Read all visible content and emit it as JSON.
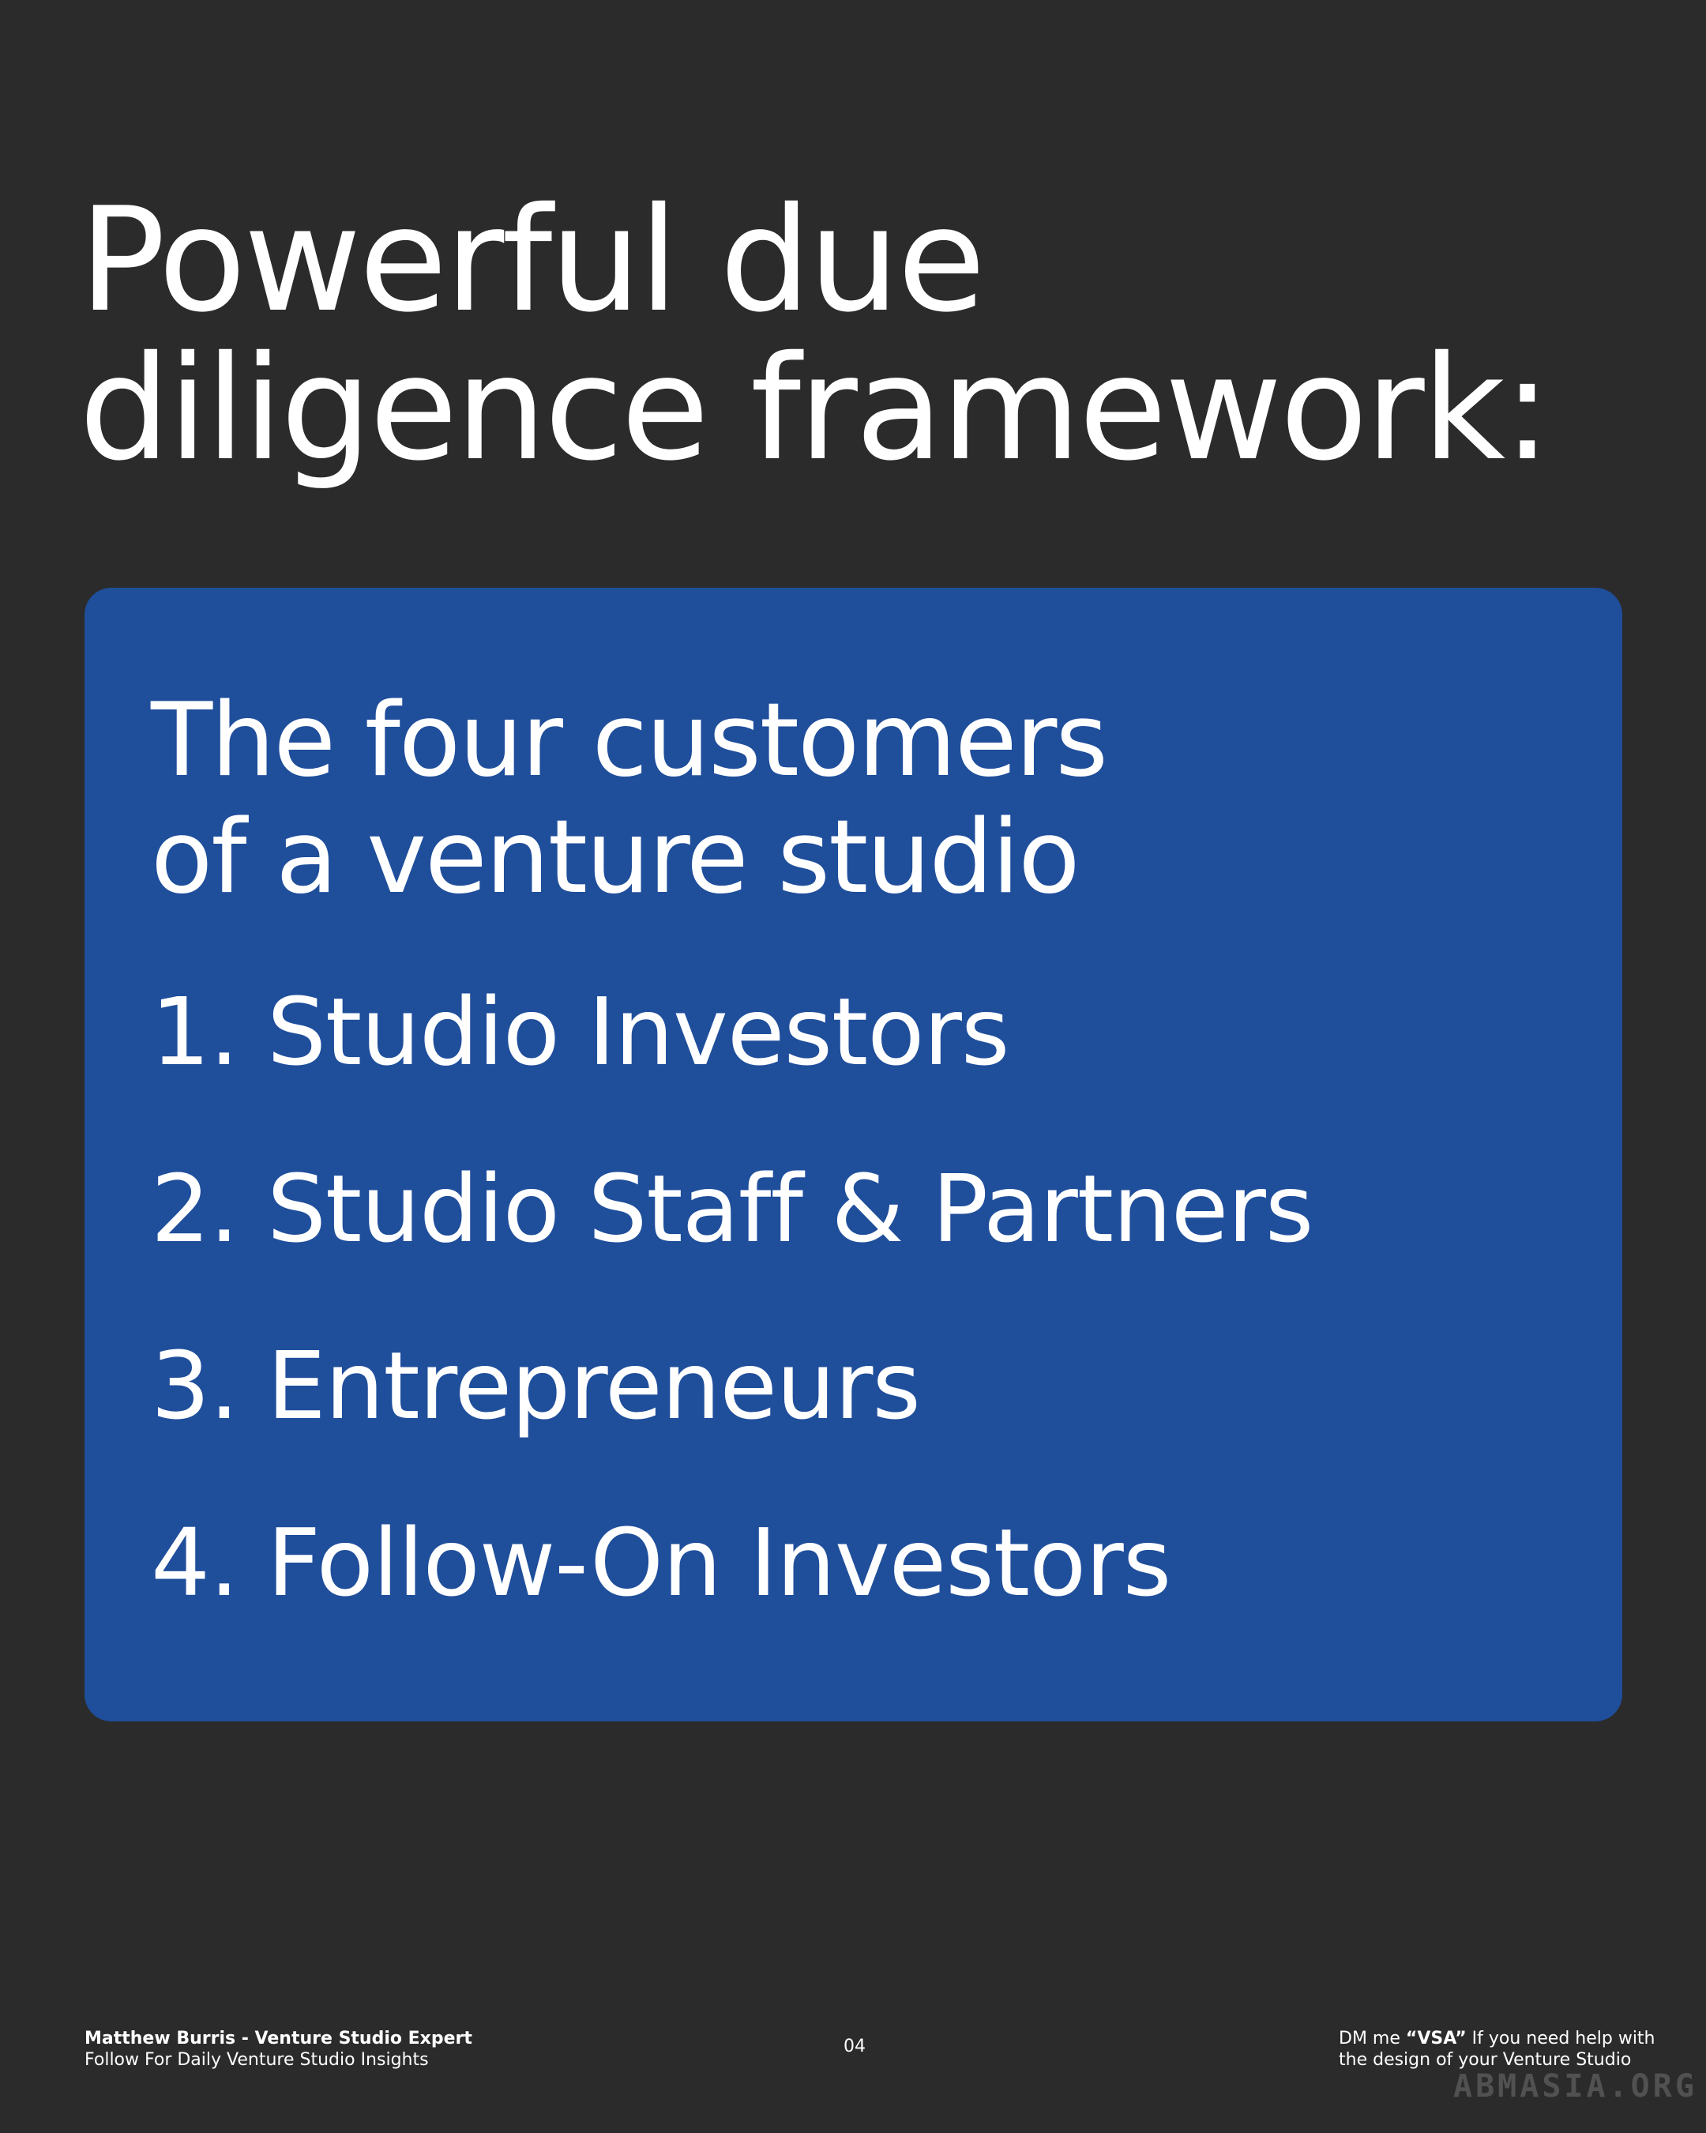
{
  "title": {
    "lines": [
      "Powerful due",
      "diligence framework:"
    ]
  },
  "card": {
    "heading": [
      "The four customers",
      "of a venture studio"
    ],
    "items": [
      "1. Studio Investors",
      "2. Studio Staff & Partners",
      "3. Entrepreneurs",
      "4. Follow-On Investors"
    ]
  },
  "footer": {
    "left": [
      "Matthew Burris - Venture Studio Expert",
      "Follow For Daily Venture Studio Insights"
    ],
    "page": "04",
    "right": {
      "prefix": "DM me ",
      "bold": "“VSA”",
      "rest": " If you need help with",
      "line2": "the design of your Venture Studio"
    },
    "watermark": "ABMASIA.ORG"
  }
}
